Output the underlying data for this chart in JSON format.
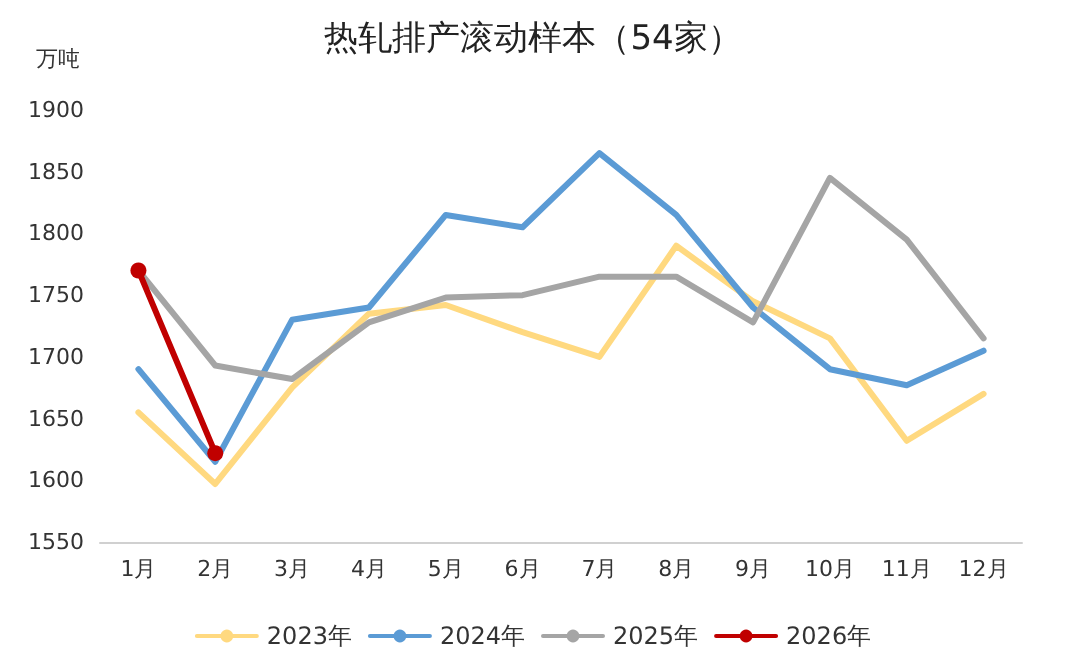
{
  "chart_data": {
    "type": "line",
    "title": "热轧排产滚动样本（54家）",
    "ylabel": "万吨",
    "categories": [
      "1月",
      "2月",
      "3月",
      "4月",
      "5月",
      "6月",
      "7月",
      "8月",
      "9月",
      "10月",
      "11月",
      "12月"
    ],
    "series": [
      {
        "name": "2023年",
        "color": "#ffd980",
        "marker": "none",
        "values": [
          1655,
          1597,
          1675,
          1735,
          1742,
          1720,
          1700,
          1790,
          1745,
          1715,
          1632,
          1670
        ]
      },
      {
        "name": "2024年",
        "color": "#5b9bd5",
        "marker": "none",
        "values": [
          1690,
          1615,
          1730,
          1740,
          1815,
          1805,
          1865,
          1815,
          1740,
          1690,
          1677,
          1705
        ]
      },
      {
        "name": "2025年",
        "color": "#a5a5a5",
        "marker": "none",
        "values": [
          1770,
          1693,
          1682,
          1728,
          1748,
          1750,
          1765,
          1765,
          1728,
          1845,
          1795,
          1715
        ]
      },
      {
        "name": "2026年",
        "color": "#c00000",
        "marker": "circle",
        "values": [
          1770,
          1622,
          null,
          null,
          null,
          null,
          null,
          null,
          null,
          null,
          null,
          null
        ]
      }
    ],
    "ylim": [
      1550,
      1900
    ],
    "yticks": [
      1550,
      1600,
      1650,
      1700,
      1750,
      1800,
      1850,
      1900
    ],
    "grid": false,
    "legend": "bottom"
  }
}
